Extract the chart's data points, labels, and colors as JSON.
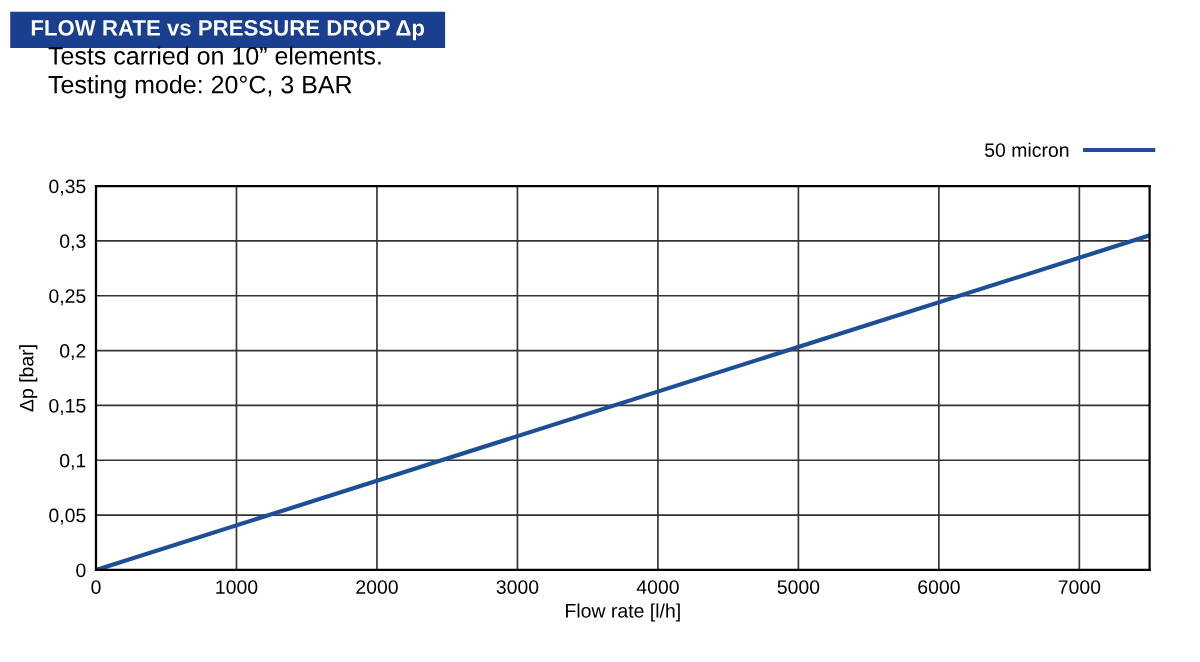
{
  "chart_data": {
    "type": "line",
    "title": "FLOW RATE vs PRESSURE DROP Δp",
    "subtitle": "Tests carried on 10” elements.\nTesting mode: 20°C, 3 BAR",
    "xlabel": "Flow rate [l/h]",
    "ylabel": "Δp [bar]",
    "series": [
      {
        "name": "50 micron",
        "color": "#1f4e99",
        "x": [
          0,
          7500
        ],
        "values": [
          0,
          0.305
        ]
      }
    ],
    "xlim": [
      0,
      7500
    ],
    "xticks": [
      0,
      1000,
      2000,
      3000,
      4000,
      5000,
      6000,
      7000
    ],
    "ylim": [
      0,
      0.35
    ],
    "yticks": [
      0,
      {
        "value": 0.05,
        "label": "0,05"
      },
      {
        "value": 0.1,
        "label": "0,1"
      },
      {
        "value": 0.15,
        "label": "0,15"
      },
      {
        "value": 0.2,
        "label": "0,2"
      },
      {
        "value": 0.25,
        "label": "0,25"
      },
      {
        "value": 0.3,
        "label": "0,3"
      },
      {
        "value": 0.35,
        "label": "0,35"
      }
    ],
    "grid": true,
    "legend": "top right",
    "marker": "none",
    "line_style": "solid"
  }
}
